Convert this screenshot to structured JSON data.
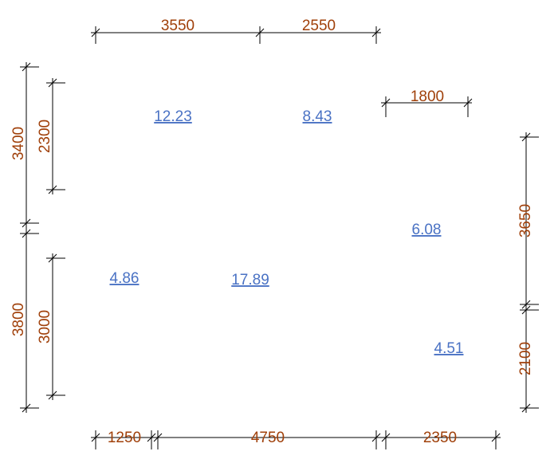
{
  "colors": {
    "dimension": "#a0400a",
    "area": "#4a72c4",
    "line": "#000000"
  },
  "dimensions": {
    "top": [
      "3550",
      "2550"
    ],
    "top_right": "1800",
    "left_outer": [
      "3400",
      "3800"
    ],
    "left_inner": [
      "2300",
      "3000"
    ],
    "right": [
      "3650",
      "2100"
    ],
    "bottom": [
      "1250",
      "4750",
      "2350"
    ]
  },
  "rooms": [
    {
      "area": "12.23"
    },
    {
      "area": "8.43"
    },
    {
      "area": "6.08"
    },
    {
      "area": "4.86"
    },
    {
      "area": "17.89"
    },
    {
      "area": "4.51"
    }
  ]
}
